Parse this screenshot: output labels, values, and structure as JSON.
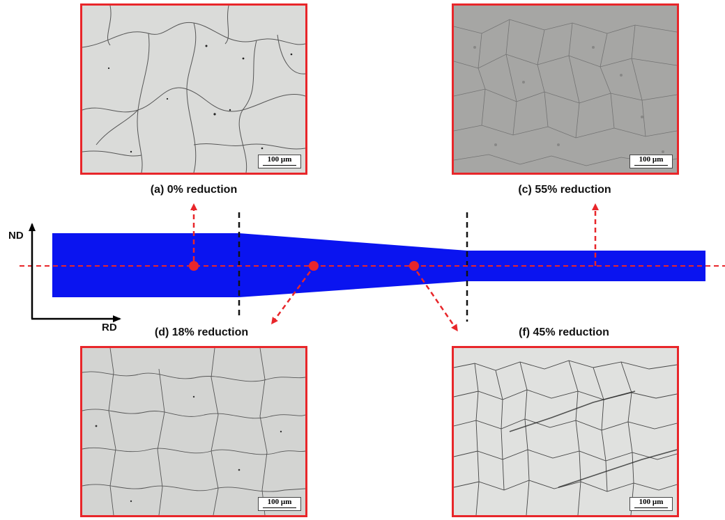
{
  "micrographs": [
    {
      "id": "a",
      "caption": "(a) 0% reduction",
      "scale": "100 µm",
      "tone": "#d9dad8"
    },
    {
      "id": "c",
      "caption": "(c) 55% reduction",
      "scale": "100 µm",
      "tone": "#a5a5a3"
    },
    {
      "id": "d",
      "caption": "(d) 18% reduction",
      "scale": "100 µm",
      "tone": "#d2d3d1"
    },
    {
      "id": "f",
      "caption": "(f) 45% reduction",
      "scale": "100 µm",
      "tone": "#dedfdd"
    }
  ],
  "axes": {
    "vertical": "ND",
    "horizontal": "RD"
  },
  "colors": {
    "workpiece": "#0a14f0",
    "highlight": "#e8262a",
    "divider": "#111111"
  }
}
